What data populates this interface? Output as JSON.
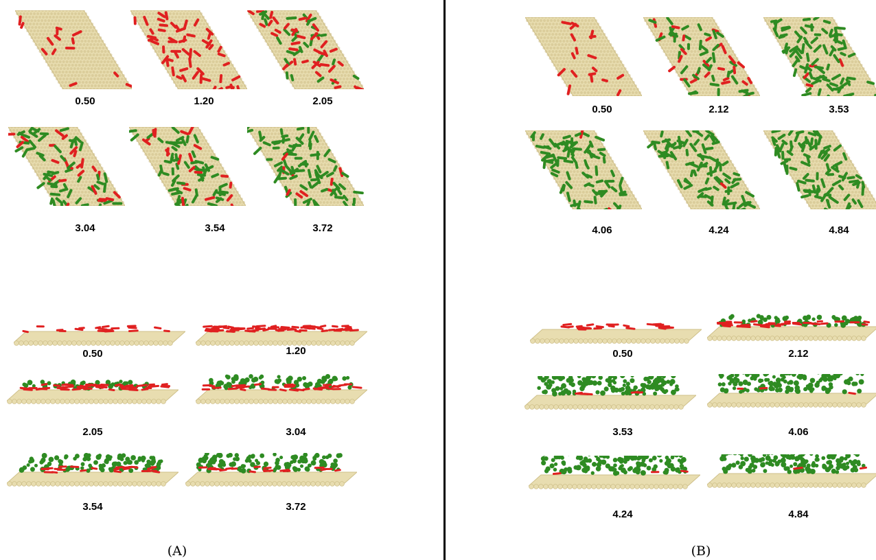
{
  "panels": [
    {
      "label": "(A)",
      "top_view": [
        "0.50",
        "1.20",
        "2.05",
        "3.04",
        "3.54",
        "3.72"
      ],
      "side_view": [
        "0.50",
        "1.20",
        "2.05",
        "3.04",
        "3.54",
        "3.72"
      ]
    },
    {
      "label": "(B)",
      "top_view": [
        "0.50",
        "2.12",
        "3.53",
        "4.06",
        "4.24",
        "4.84"
      ],
      "side_view": [
        "0.50",
        "2.12",
        "3.53",
        "4.06",
        "4.24",
        "4.84"
      ]
    }
  ],
  "colors": {
    "substrate": "#e8ddb0",
    "substrate_shade": "#cfc08a",
    "molecule_red": "#e02020",
    "molecule_green": "#2e8b22",
    "divider": "#000000"
  },
  "coverage": {
    "A": [
      {
        "red": 0.15,
        "green": 0.0
      },
      {
        "red": 0.55,
        "green": 0.0
      },
      {
        "red": 0.45,
        "green": 0.35
      },
      {
        "red": 0.3,
        "green": 0.6
      },
      {
        "red": 0.2,
        "green": 0.75
      },
      {
        "red": 0.15,
        "green": 0.85
      }
    ],
    "B": [
      {
        "red": 0.2,
        "green": 0.0
      },
      {
        "red": 0.3,
        "green": 0.45
      },
      {
        "red": 0.05,
        "green": 0.9
      },
      {
        "red": 0.02,
        "green": 0.97
      },
      {
        "red": 0.02,
        "green": 0.98
      },
      {
        "red": 0.01,
        "green": 0.99
      }
    ]
  }
}
